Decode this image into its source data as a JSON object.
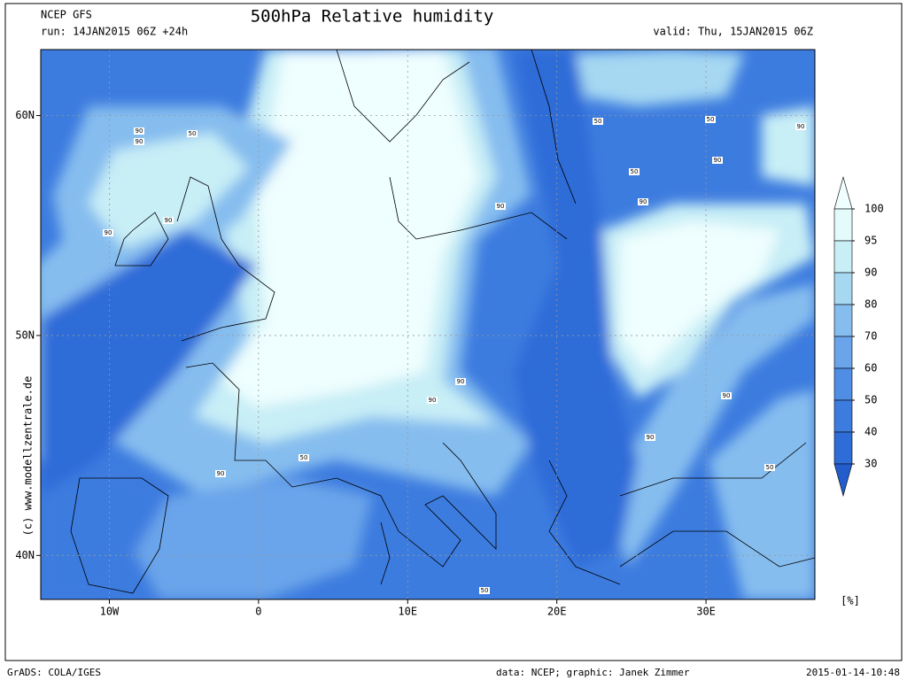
{
  "header": {
    "model": "NCEP GFS",
    "run": "run: 14JAN2015 06Z +24h",
    "title": "500hPa Relative humidity",
    "valid": "valid: Thu, 15JAN2015 06Z"
  },
  "map": {
    "lon_range": [
      -14.6,
      37.3
    ],
    "lat_range": [
      38,
      63
    ],
    "lon_ticks": [
      {
        "value": -10,
        "label": "10W"
      },
      0,
      {
        "value": 10,
        "label": "10E"
      },
      {
        "value": 20,
        "label": "20E"
      },
      {
        "value": 30,
        "label": "30E"
      }
    ],
    "lat_ticks": [
      {
        "value": 60,
        "label": "60N"
      },
      {
        "value": 50,
        "label": "50N"
      },
      {
        "value": 40,
        "label": "40N"
      }
    ],
    "grid": true,
    "contour_labels": [
      "90",
      "90",
      "50",
      "90",
      "90",
      "50",
      "50",
      "90",
      "50",
      "90",
      "90",
      "90",
      "90",
      "90",
      "90",
      "90",
      "50",
      "90",
      "50",
      "50"
    ]
  },
  "colorbar": {
    "levels": [
      100,
      95,
      90,
      80,
      70,
      60,
      50,
      40,
      30
    ],
    "colors": [
      "#effefe",
      "#e4fbfc",
      "#c8eef6",
      "#a6d8f2",
      "#86bdef",
      "#6aa4ea",
      "#508de4",
      "#3d7cdf",
      "#2e6cd8",
      "#235dcc"
    ],
    "unit": "[%]"
  },
  "credit": "(c) www.modellzentrale.de",
  "footer": {
    "software": "GrADS: COLA/IGES",
    "source": "data: NCEP; graphic: Janek Zimmer",
    "timestamp": "2015-01-14-10:48"
  }
}
